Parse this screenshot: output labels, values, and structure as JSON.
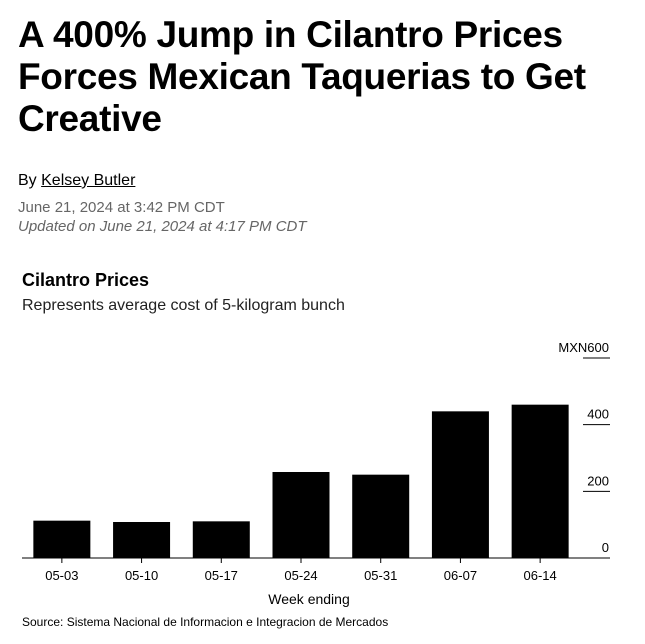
{
  "article": {
    "headline": "A 400% Jump in Cilantro Prices Forces Mexican Taquerias to Get Creative",
    "byline_prefix": "By ",
    "author": "Kelsey Butler",
    "published": "June 21, 2024 at 3:42 PM CDT",
    "updated": "Updated on June 21, 2024 at 4:17 PM CDT"
  },
  "chart_data": {
    "type": "bar",
    "title": "Cilantro Prices",
    "subtitle": "Represents average cost of 5-kilogram bunch",
    "categories": [
      "05-03",
      "05-10",
      "05-17",
      "05-24",
      "05-31",
      "06-07",
      "06-14"
    ],
    "values": [
      112,
      108,
      110,
      258,
      250,
      440,
      460
    ],
    "xlabel": "Week ending",
    "ylabel": "",
    "ylim": [
      0,
      600
    ],
    "yticks": [
      0,
      200,
      400,
      600
    ],
    "ytick_labels": [
      "0",
      "200",
      "400",
      "MXN600"
    ],
    "y_axis_position": "right",
    "grid": false,
    "bar_color": "#000000",
    "source": "Source: Sistema Nacional de Informacion e Integracion de Mercados"
  }
}
